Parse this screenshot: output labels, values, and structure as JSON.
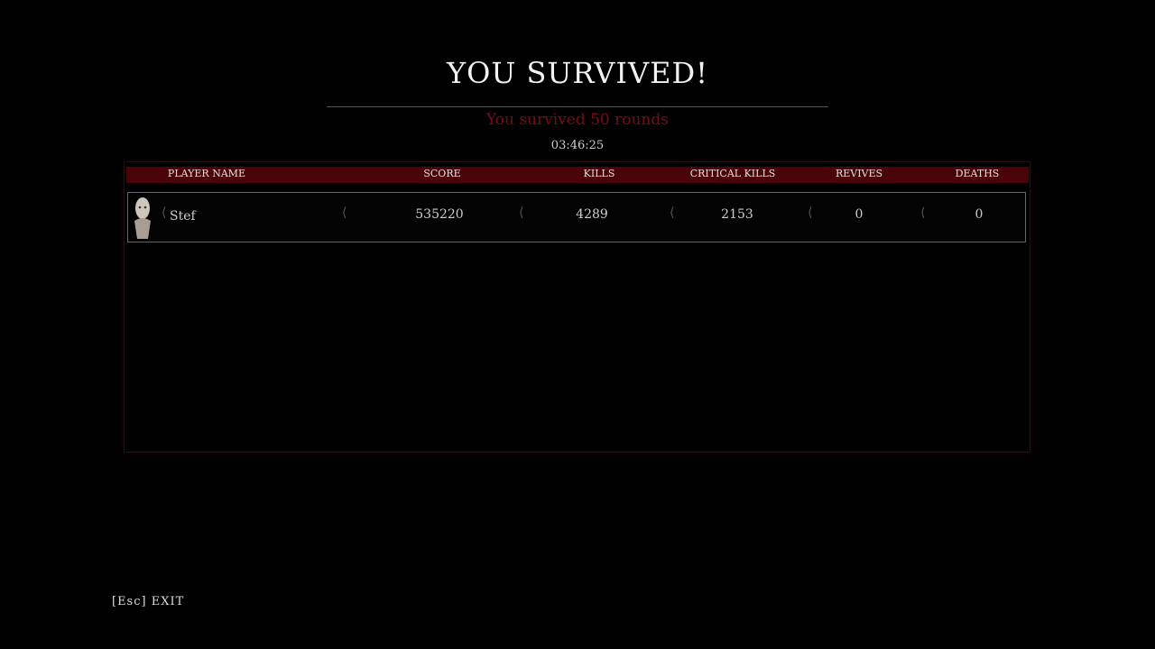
{
  "title": "YOU SURVIVED!",
  "subtitle": "You survived 50 rounds",
  "time": "03:46:25",
  "columns": [
    "PLAYER NAME",
    "SCORE",
    "KILLS",
    "CRITICAL KILLS",
    "REVIVES",
    "DEATHS"
  ],
  "rows": [
    {
      "name": "Stef",
      "score": "535220",
      "kills": "4289",
      "critical_kills": "2153",
      "revives": "0",
      "deaths": "0"
    }
  ],
  "footer": {
    "key": "[Esc]",
    "label": "EXIT"
  },
  "colors": {
    "accent": "#4a0409",
    "subtitle": "#7a0c12"
  }
}
